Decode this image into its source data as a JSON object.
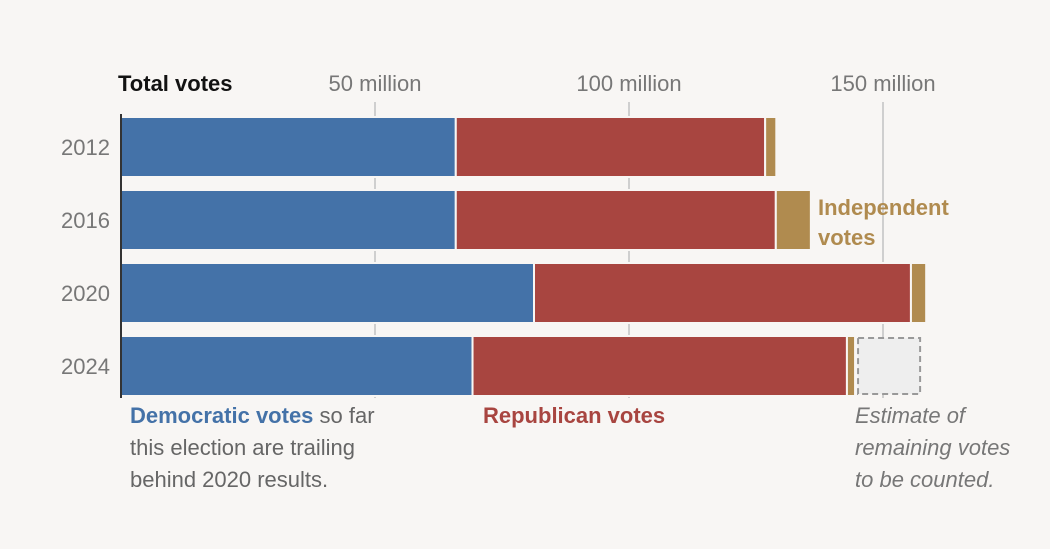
{
  "chart_data": {
    "type": "bar",
    "orientation": "horizontal",
    "stacked": true,
    "title": "Total votes",
    "categories": [
      "2012",
      "2016",
      "2020",
      "2024"
    ],
    "series": [
      {
        "name": "Democratic votes",
        "color": "#4472a8",
        "values": [
          65.9,
          65.9,
          81.3,
          69.2
        ]
      },
      {
        "name": "Republican votes",
        "color": "#a84540",
        "values": [
          60.9,
          63.0,
          74.2,
          73.7
        ]
      },
      {
        "name": "Independent votes",
        "color": "#b08b4f",
        "values": [
          2.2,
          6.9,
          3.0,
          1.6
        ]
      },
      {
        "name": "Estimate of remaining votes",
        "color": "#eeeeee",
        "values": [
          0,
          0,
          0,
          13.0
        ]
      }
    ],
    "x_ticks": [
      50,
      100,
      150
    ],
    "x_tick_labels": [
      "50 million",
      "100 million",
      "150 million"
    ],
    "xlim": [
      0,
      160
    ],
    "grid": true
  },
  "annotations": {
    "dem_label": "Democratic votes",
    "dem_text_1": " so far",
    "dem_text_2": "this election are trailing",
    "dem_text_3": "behind 2020 results.",
    "rep_label": "Republican votes",
    "ind_label_1": "Independent",
    "ind_label_2": "votes",
    "est_line_1": "Estimate of",
    "est_line_2": "remaining votes",
    "est_line_3": "to be counted."
  }
}
